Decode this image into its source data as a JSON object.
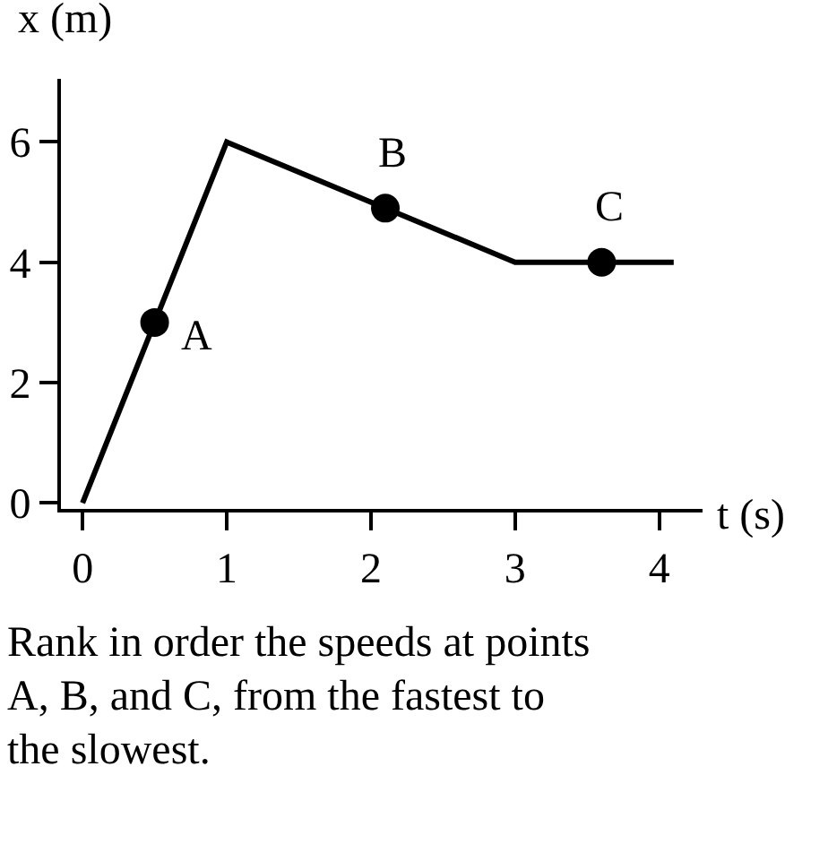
{
  "chart_data": {
    "type": "line",
    "xlabel": "t (s)",
    "ylabel": "x (m)",
    "xlim": [
      -0.15,
      4.3
    ],
    "ylim": [
      -0.1,
      7.05
    ],
    "xticks": [
      0,
      1,
      2,
      3,
      4
    ],
    "yticks": [
      0,
      2,
      4,
      6
    ],
    "series": [
      {
        "x": [
          0,
          1,
          3,
          4.1
        ],
        "values": [
          0,
          6,
          4,
          4
        ],
        "color": "#000000",
        "marker": "none"
      },
      {
        "type": "scatter",
        "x": [
          0.5,
          2.1,
          3.6
        ],
        "values": [
          3,
          4.9,
          4
        ],
        "color": "#000000",
        "marker": "circle"
      }
    ],
    "annotations": [
      {
        "text": "A",
        "x": 0.5,
        "y": 3
      },
      {
        "text": "B",
        "x": 2.1,
        "y": 4.9
      },
      {
        "text": "C",
        "x": 3.6,
        "y": 4
      },
      "Rank in order the speeds at points A, B, and C, from the fastest to the slowest."
    ]
  }
}
